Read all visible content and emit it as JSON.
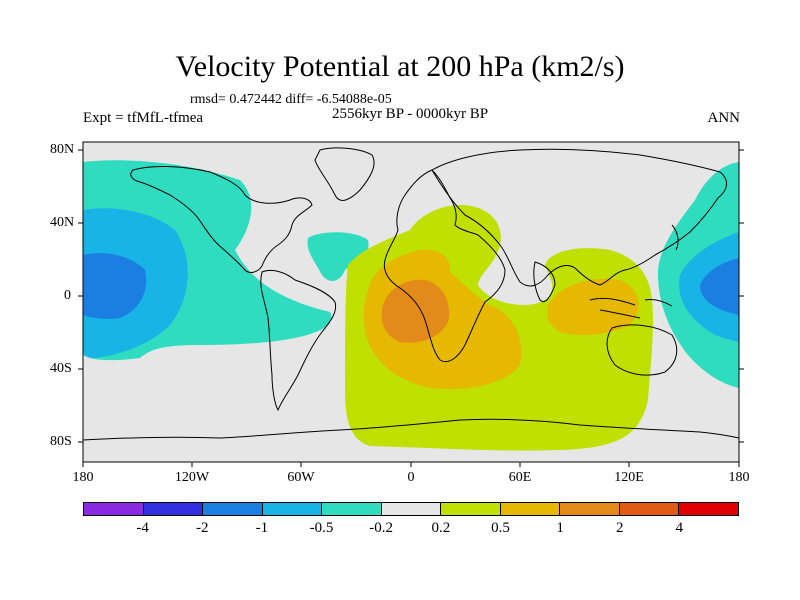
{
  "title": "Velocity Potential at 200 hPa (km2/s)",
  "stats": "rmsd= 0.472442  diff= -6.54088e-05",
  "experiment": "Expt = tfMfL-tfmea",
  "period": "2556kyr BP - 0000kyr BP",
  "season": "ANN",
  "axes": {
    "y_ticks": [
      "80N",
      "40N",
      "0",
      "40S",
      "80S"
    ],
    "x_ticks": [
      "180",
      "120W",
      "60W",
      "0",
      "60E",
      "120E",
      "180"
    ]
  },
  "colorbar": {
    "colors": [
      "#8a2be2",
      "#3030e0",
      "#1a7fe0",
      "#18b4e6",
      "#30dcc0",
      "#e6e6e6",
      "#bfe000",
      "#e6b800",
      "#e28a1a",
      "#e05a14",
      "#e00000"
    ],
    "labels": [
      "-4",
      "-2",
      "-1",
      "-0.5",
      "-0.2",
      "0.2",
      "0.5",
      "1",
      "2",
      "4"
    ]
  }
}
